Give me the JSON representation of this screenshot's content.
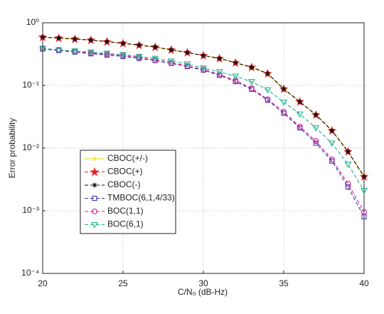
{
  "chart_data": {
    "type": "line",
    "xlabel": "C/N₀ (dB-Hz)",
    "ylabel": "Error probability",
    "x": [
      20,
      21,
      22,
      23,
      24,
      25,
      26,
      27,
      28,
      29,
      30,
      31,
      32,
      33,
      34,
      35,
      36,
      37,
      38,
      39,
      40
    ],
    "xlim": [
      20,
      40
    ],
    "xticks": [
      20,
      25,
      30,
      35,
      40
    ],
    "ylim": [
      0.0001,
      1
    ],
    "yscale": "log",
    "yticks": [
      {
        "value": 1,
        "label": "10⁰"
      },
      {
        "value": 0.1,
        "label": "10⁻¹"
      },
      {
        "value": 0.01,
        "label": "10⁻²"
      },
      {
        "value": 0.001,
        "label": "10⁻³"
      },
      {
        "value": 0.0001,
        "label": "10⁻⁴"
      }
    ],
    "grid": true,
    "legend": "lower left",
    "series": [
      {
        "name": "CBOC(+/-)",
        "color": "#e6d400",
        "marker": "plus",
        "dash": false,
        "values": [
          0.59,
          0.57,
          0.55,
          0.53,
          0.5,
          0.47,
          0.44,
          0.41,
          0.37,
          0.335,
          0.3,
          0.27,
          0.23,
          0.195,
          0.155,
          0.088,
          0.055,
          0.034,
          0.019,
          0.0088,
          0.0035
        ]
      },
      {
        "name": "CBOC(+)",
        "color": "#e8202a",
        "marker": "star",
        "dash": true,
        "values": [
          0.59,
          0.57,
          0.55,
          0.53,
          0.5,
          0.47,
          0.44,
          0.41,
          0.37,
          0.335,
          0.3,
          0.27,
          0.23,
          0.195,
          0.155,
          0.088,
          0.055,
          0.034,
          0.019,
          0.0088,
          0.0035
        ]
      },
      {
        "name": "CBOC(-)",
        "color": "#111111",
        "marker": "asterisk",
        "dash": true,
        "values": [
          0.59,
          0.57,
          0.55,
          0.53,
          0.5,
          0.47,
          0.44,
          0.41,
          0.37,
          0.335,
          0.3,
          0.27,
          0.23,
          0.195,
          0.155,
          0.088,
          0.055,
          0.034,
          0.019,
          0.0088,
          0.0035
        ]
      },
      {
        "name": "TMBOC(6,1,4/33)",
        "color": "#3a3aa8",
        "marker": "square",
        "dash": true,
        "values": [
          0.38,
          0.36,
          0.34,
          0.32,
          0.305,
          0.29,
          0.27,
          0.25,
          0.225,
          0.2,
          0.175,
          0.145,
          0.115,
          0.087,
          0.058,
          0.036,
          0.021,
          0.012,
          0.0062,
          0.0024,
          0.0008
        ]
      },
      {
        "name": "BOC(1,1)",
        "color": "#d0209a",
        "marker": "circle",
        "dash": true,
        "values": [
          0.39,
          0.37,
          0.35,
          0.33,
          0.315,
          0.3,
          0.28,
          0.255,
          0.23,
          0.205,
          0.18,
          0.15,
          0.12,
          0.09,
          0.06,
          0.038,
          0.022,
          0.013,
          0.0066,
          0.0027,
          0.00095
        ]
      },
      {
        "name": "BOC(6,1)",
        "color": "#1fb08c",
        "marker": "triangle-down",
        "dash": true,
        "values": [
          0.39,
          0.37,
          0.355,
          0.34,
          0.325,
          0.31,
          0.29,
          0.27,
          0.245,
          0.22,
          0.19,
          0.165,
          0.14,
          0.115,
          0.085,
          0.054,
          0.035,
          0.021,
          0.012,
          0.0055,
          0.0021
        ]
      }
    ]
  }
}
